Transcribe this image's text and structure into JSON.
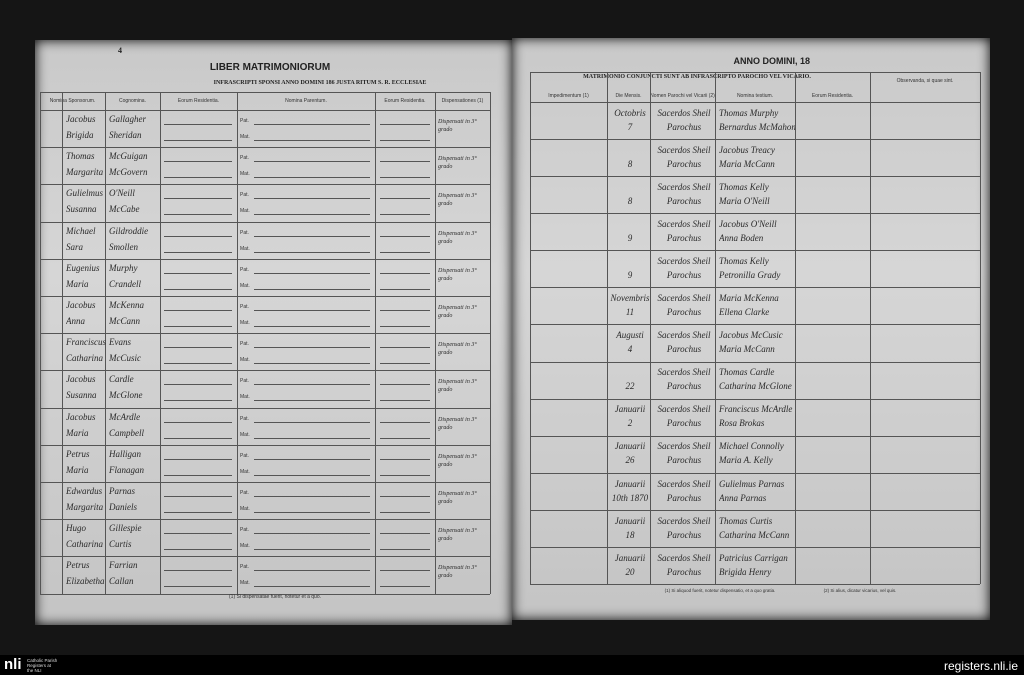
{
  "left": {
    "page_mark": "4",
    "title": "LIBER MATRIMONIORUM",
    "heading": "INFRASCRIPTI SPONSI ANNO DOMINI 186 JUSTA RITUM S. R. ECCLESIAE",
    "columns": [
      "Nomina Sponsorum.",
      "Cognomina.",
      "Eorum Residentia.",
      "Nomina Parentum.",
      "Eorum Residentia.",
      "Dispensationes (1)"
    ],
    "parent_labels": [
      "Pat.",
      "Mat."
    ],
    "rows": [
      {
        "names": [
          "Jacobus",
          "Brigida"
        ],
        "surnames": [
          "Gallagher",
          "Sheridan"
        ],
        "note": "Dispensati in 3° grado"
      },
      {
        "names": [
          "Thomas",
          "Margarita"
        ],
        "surnames": [
          "McGuigan",
          "McGovern"
        ],
        "note": "Dispensati in 3° grado"
      },
      {
        "names": [
          "Gulielmus",
          "Susanna"
        ],
        "surnames": [
          "O'Neill",
          "McCabe"
        ],
        "note": "Dispensati in 3° grado"
      },
      {
        "names": [
          "Michael",
          "Sara"
        ],
        "surnames": [
          "Gildroddie",
          "Smollen"
        ],
        "note": "Dispensati in 3° grado"
      },
      {
        "names": [
          "Eugenius",
          "Maria"
        ],
        "surnames": [
          "Murphy",
          "Crandell"
        ],
        "note": "Dispensati in 3° grado"
      },
      {
        "names": [
          "Jacobus",
          "Anna"
        ],
        "surnames": [
          "McKenna",
          "McCann"
        ],
        "note": "Dispensati in 3° grado"
      },
      {
        "names": [
          "Franciscus",
          "Catharina"
        ],
        "surnames": [
          "Evans",
          "McCusic"
        ],
        "note": "Dispensati in 3° grado"
      },
      {
        "names": [
          "Jacobus",
          "Susanna"
        ],
        "surnames": [
          "Cardle",
          "McGlone"
        ],
        "note": "Dispensati in 3° grado"
      },
      {
        "names": [
          "Jacobus",
          "Maria"
        ],
        "surnames": [
          "McArdle",
          "Campbell"
        ],
        "note": "Dispensati in 3° grado"
      },
      {
        "names": [
          "Petrus",
          "Maria"
        ],
        "surnames": [
          "Halligan",
          "Flanagan"
        ],
        "note": "Dispensati in 3° grado"
      },
      {
        "names": [
          "Edwardus",
          "Margarita"
        ],
        "surnames": [
          "Parnas",
          "Daniels"
        ],
        "note": "Dispensati in 3° grado"
      },
      {
        "names": [
          "Hugo",
          "Catharina"
        ],
        "surnames": [
          "Gillespie",
          "Curtis"
        ],
        "note": "Dispensati in 3° grado"
      },
      {
        "names": [
          "Petrus",
          "Elizabetha"
        ],
        "surnames": [
          "Farrian",
          "Callan"
        ],
        "note": "Dispensati in 3° grado"
      }
    ],
    "footnote": "(1) Si dispensatae fuerit, notetur et a quo."
  },
  "right": {
    "title": "ANNO DOMINI, 18",
    "heading": "MATRIMONIO CONJUNCTI SUNT AB INFRASCRIPTO PAROCHO VEL VICARIO.",
    "columns": [
      "Impedimentum (1)",
      "Die Mensis.",
      "Nomen Parochi vel Vicarii (2)",
      "Nomina testium.",
      "Eorum Residentia.",
      "Observanda, si quae sint."
    ],
    "rows": [
      {
        "date": [
          "Octobris",
          "7"
        ],
        "priest": [
          "Sacerdos Sheil",
          "Parochus"
        ],
        "witnesses": [
          "Thomas Murphy",
          "Bernardus McMahon"
        ]
      },
      {
        "date": [
          "",
          "8"
        ],
        "priest": [
          "Sacerdos Sheil",
          "Parochus"
        ],
        "witnesses": [
          "Jacobus Treacy",
          "Maria McCann"
        ]
      },
      {
        "date": [
          "",
          "8"
        ],
        "priest": [
          "Sacerdos Sheil",
          "Parochus"
        ],
        "witnesses": [
          "Thomas Kelly",
          "Maria O'Neill"
        ]
      },
      {
        "date": [
          "",
          "9"
        ],
        "priest": [
          "Sacerdos Sheil",
          "Parochus"
        ],
        "witnesses": [
          "Jacobus O'Neill",
          "Anna Boden"
        ]
      },
      {
        "date": [
          "",
          "9"
        ],
        "priest": [
          "Sacerdos Sheil",
          "Parochus"
        ],
        "witnesses": [
          "Thomas Kelly",
          "Petronilla Grady"
        ]
      },
      {
        "date": [
          "Novembris",
          "11"
        ],
        "priest": [
          "Sacerdos Sheil",
          "Parochus"
        ],
        "witnesses": [
          "Maria McKenna",
          "Ellena Clarke"
        ]
      },
      {
        "date": [
          "Augusti",
          "4"
        ],
        "priest": [
          "Sacerdos Sheil",
          "Parochus"
        ],
        "witnesses": [
          "Jacobus McCusic",
          "Maria McCann"
        ]
      },
      {
        "date": [
          "",
          "22"
        ],
        "priest": [
          "Sacerdos Sheil",
          "Parochus"
        ],
        "witnesses": [
          "Thomas Cardle",
          "Catharina McGlone"
        ]
      },
      {
        "date": [
          "Januarii",
          "2"
        ],
        "priest": [
          "Sacerdos Sheil",
          "Parochus"
        ],
        "witnesses": [
          "Franciscus McArdle",
          "Rosa Brokas"
        ]
      },
      {
        "date": [
          "Januarii",
          "26"
        ],
        "priest": [
          "Sacerdos Sheil",
          "Parochus"
        ],
        "witnesses": [
          "Michael Connolly",
          "Maria A. Kelly"
        ]
      },
      {
        "date": [
          "Januarii",
          "10th 1870"
        ],
        "priest": [
          "Sacerdos Sheil",
          "Parochus"
        ],
        "witnesses": [
          "Gulielmus Parnas",
          "Anna Parnas"
        ]
      },
      {
        "date": [
          "Januarii",
          "18"
        ],
        "priest": [
          "Sacerdos Sheil",
          "Parochus"
        ],
        "witnesses": [
          "Thomas Curtis",
          "Catharina McCann"
        ]
      },
      {
        "date": [
          "Januarii",
          "20"
        ],
        "priest": [
          "Sacerdos Sheil",
          "Parochus"
        ],
        "witnesses": [
          "Patricius Carrigan",
          "Brigida Henry"
        ]
      }
    ],
    "footnotes": [
      "(1) Si aliquod fuerit, notetur dispensatio, et a quo gratia.",
      "(2) Si alius, dicatur vicarius, vel quis."
    ]
  },
  "footer": {
    "logo": "nli",
    "brand": [
      "Catholic Parish",
      "Registers at",
      "the NLI"
    ],
    "url": "registers.nli.ie"
  }
}
